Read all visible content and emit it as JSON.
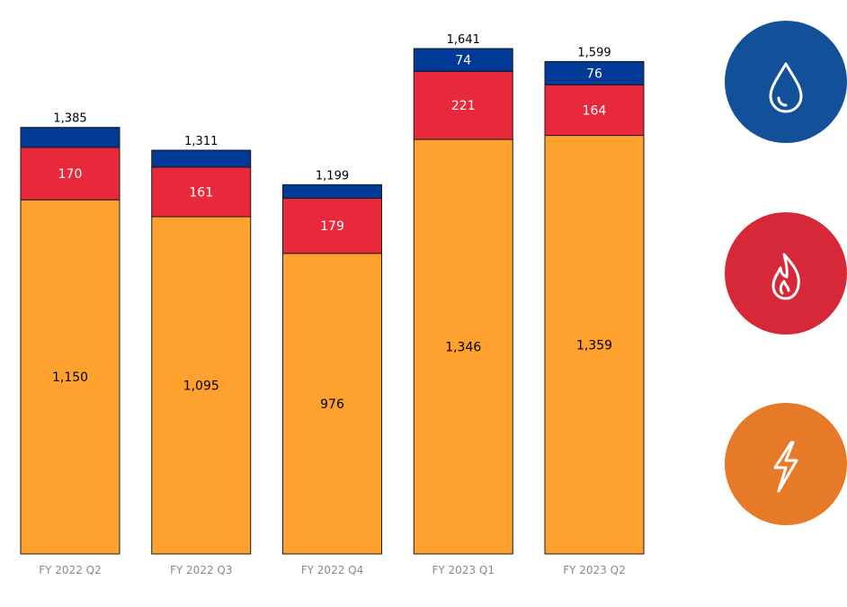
{
  "chart_data": {
    "type": "bar",
    "stacked": true,
    "categories": [
      "FY 2022 Q2",
      "FY 2022 Q3",
      "FY 2022 Q4",
      "FY 2023 Q1",
      "FY 2023 Q2"
    ],
    "series": [
      {
        "key": "electricity",
        "values": [
          1150,
          1095,
          976,
          1346,
          1359
        ],
        "color": "#FFA12F",
        "label_color": "#000000"
      },
      {
        "key": "gas",
        "values": [
          170,
          161,
          179,
          221,
          164
        ],
        "color": "#E8283B",
        "label_color": "#ffffff"
      },
      {
        "key": "water",
        "values": [
          65,
          55,
          44,
          74,
          76
        ],
        "color": "#003A96",
        "label_color": "#ffffff",
        "show_labels": [
          false,
          false,
          false,
          true,
          true
        ]
      }
    ],
    "totals": [
      1385,
      1311,
      1199,
      1641,
      1599
    ],
    "value_labels": {
      "electricity": [
        "1,150",
        "1,095",
        "976",
        "1,346",
        "1,359"
      ],
      "gas": [
        "170",
        "161",
        "179",
        "221",
        "164"
      ],
      "water": [
        "",
        "",
        "",
        "74",
        "76"
      ]
    },
    "total_labels": [
      "1,385",
      "1,311",
      "1,199",
      "1,641",
      "1,599"
    ],
    "ylim": [
      0,
      1641
    ],
    "title": "",
    "xlabel": "",
    "ylabel": "",
    "grid": false,
    "legend": {
      "placement": "right",
      "items": [
        {
          "series": "water",
          "icon": "water-drop-icon",
          "color": "#12509A"
        },
        {
          "series": "gas",
          "icon": "flame-icon",
          "color": "#D62839"
        },
        {
          "series": "electricity",
          "icon": "lightning-bolt-icon",
          "color": "#E67A28"
        }
      ]
    }
  }
}
